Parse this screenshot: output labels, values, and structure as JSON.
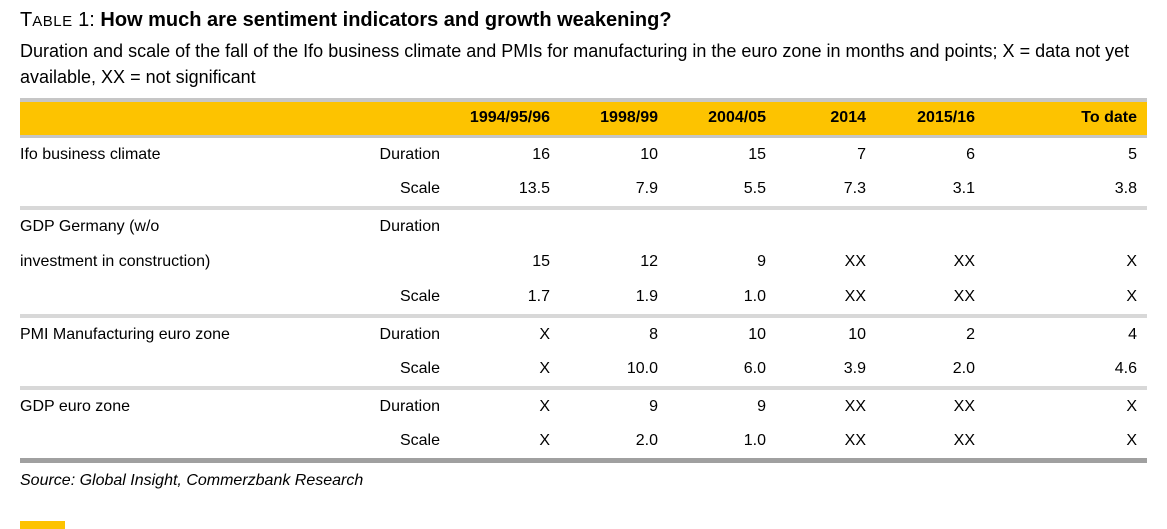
{
  "title": {
    "prefix_cap": "T",
    "prefix_small": "ABLE",
    "prefix_rest": " 1: ",
    "main": "How much are sentiment indicators and growth weakening?"
  },
  "subtitle": "Duration and scale of the fall of the Ifo business climate and PMIs for manufacturing in the euro zone in months and points; X = data not yet available, XX = not significant",
  "table": {
    "columns": [
      "",
      "",
      "1994/95/96",
      "1998/99",
      "2004/05",
      "2014",
      "2015/16",
      "To date"
    ],
    "rows": [
      {
        "label": "Ifo business climate",
        "measure": "Duration",
        "cells": [
          "16",
          "10",
          "15",
          "7",
          "6",
          "5"
        ],
        "sep_after": false
      },
      {
        "label": "",
        "measure": "Scale",
        "cells": [
          "13.5",
          "7.9",
          "5.5",
          "7.3",
          "3.1",
          "3.8"
        ],
        "sep_after": true
      },
      {
        "label": "GDP Germany (w/o",
        "measure": "Duration",
        "cells": [
          "",
          "",
          "",
          "",
          "",
          ""
        ],
        "sep_after": false
      },
      {
        "label": "investment in construction)",
        "measure": "",
        "cells": [
          "15",
          "12",
          "9",
          "XX",
          "XX",
          "X"
        ],
        "sep_after": false
      },
      {
        "label": "",
        "measure": "Scale",
        "cells": [
          "1.7",
          "1.9",
          "1.0",
          "XX",
          "XX",
          "X"
        ],
        "sep_after": true
      },
      {
        "label": "PMI Manufacturing euro zone",
        "measure": "Duration",
        "cells": [
          "X",
          "8",
          "10",
          "10",
          "2",
          "4"
        ],
        "sep_after": false
      },
      {
        "label": "",
        "measure": "Scale",
        "cells": [
          "X",
          "10.0",
          "6.0",
          "3.9",
          "2.0",
          "4.6"
        ],
        "sep_after": true
      },
      {
        "label": "GDP euro zone",
        "measure": "Duration",
        "cells": [
          "X",
          "9",
          "9",
          "XX",
          "XX",
          "X"
        ],
        "sep_after": false
      },
      {
        "label": "",
        "measure": "Scale",
        "cells": [
          "X",
          "2.0",
          "1.0",
          "XX",
          "XX",
          "X"
        ],
        "sep_after": false
      }
    ]
  },
  "source": "Source: Global Insight, Commerzbank Research",
  "colors": {
    "header_bg": "#FDC300",
    "header_border": "#C6C6C6",
    "separator": "#D8D8D8",
    "border_bottom": "#A0A0A0",
    "text": "#000000"
  }
}
